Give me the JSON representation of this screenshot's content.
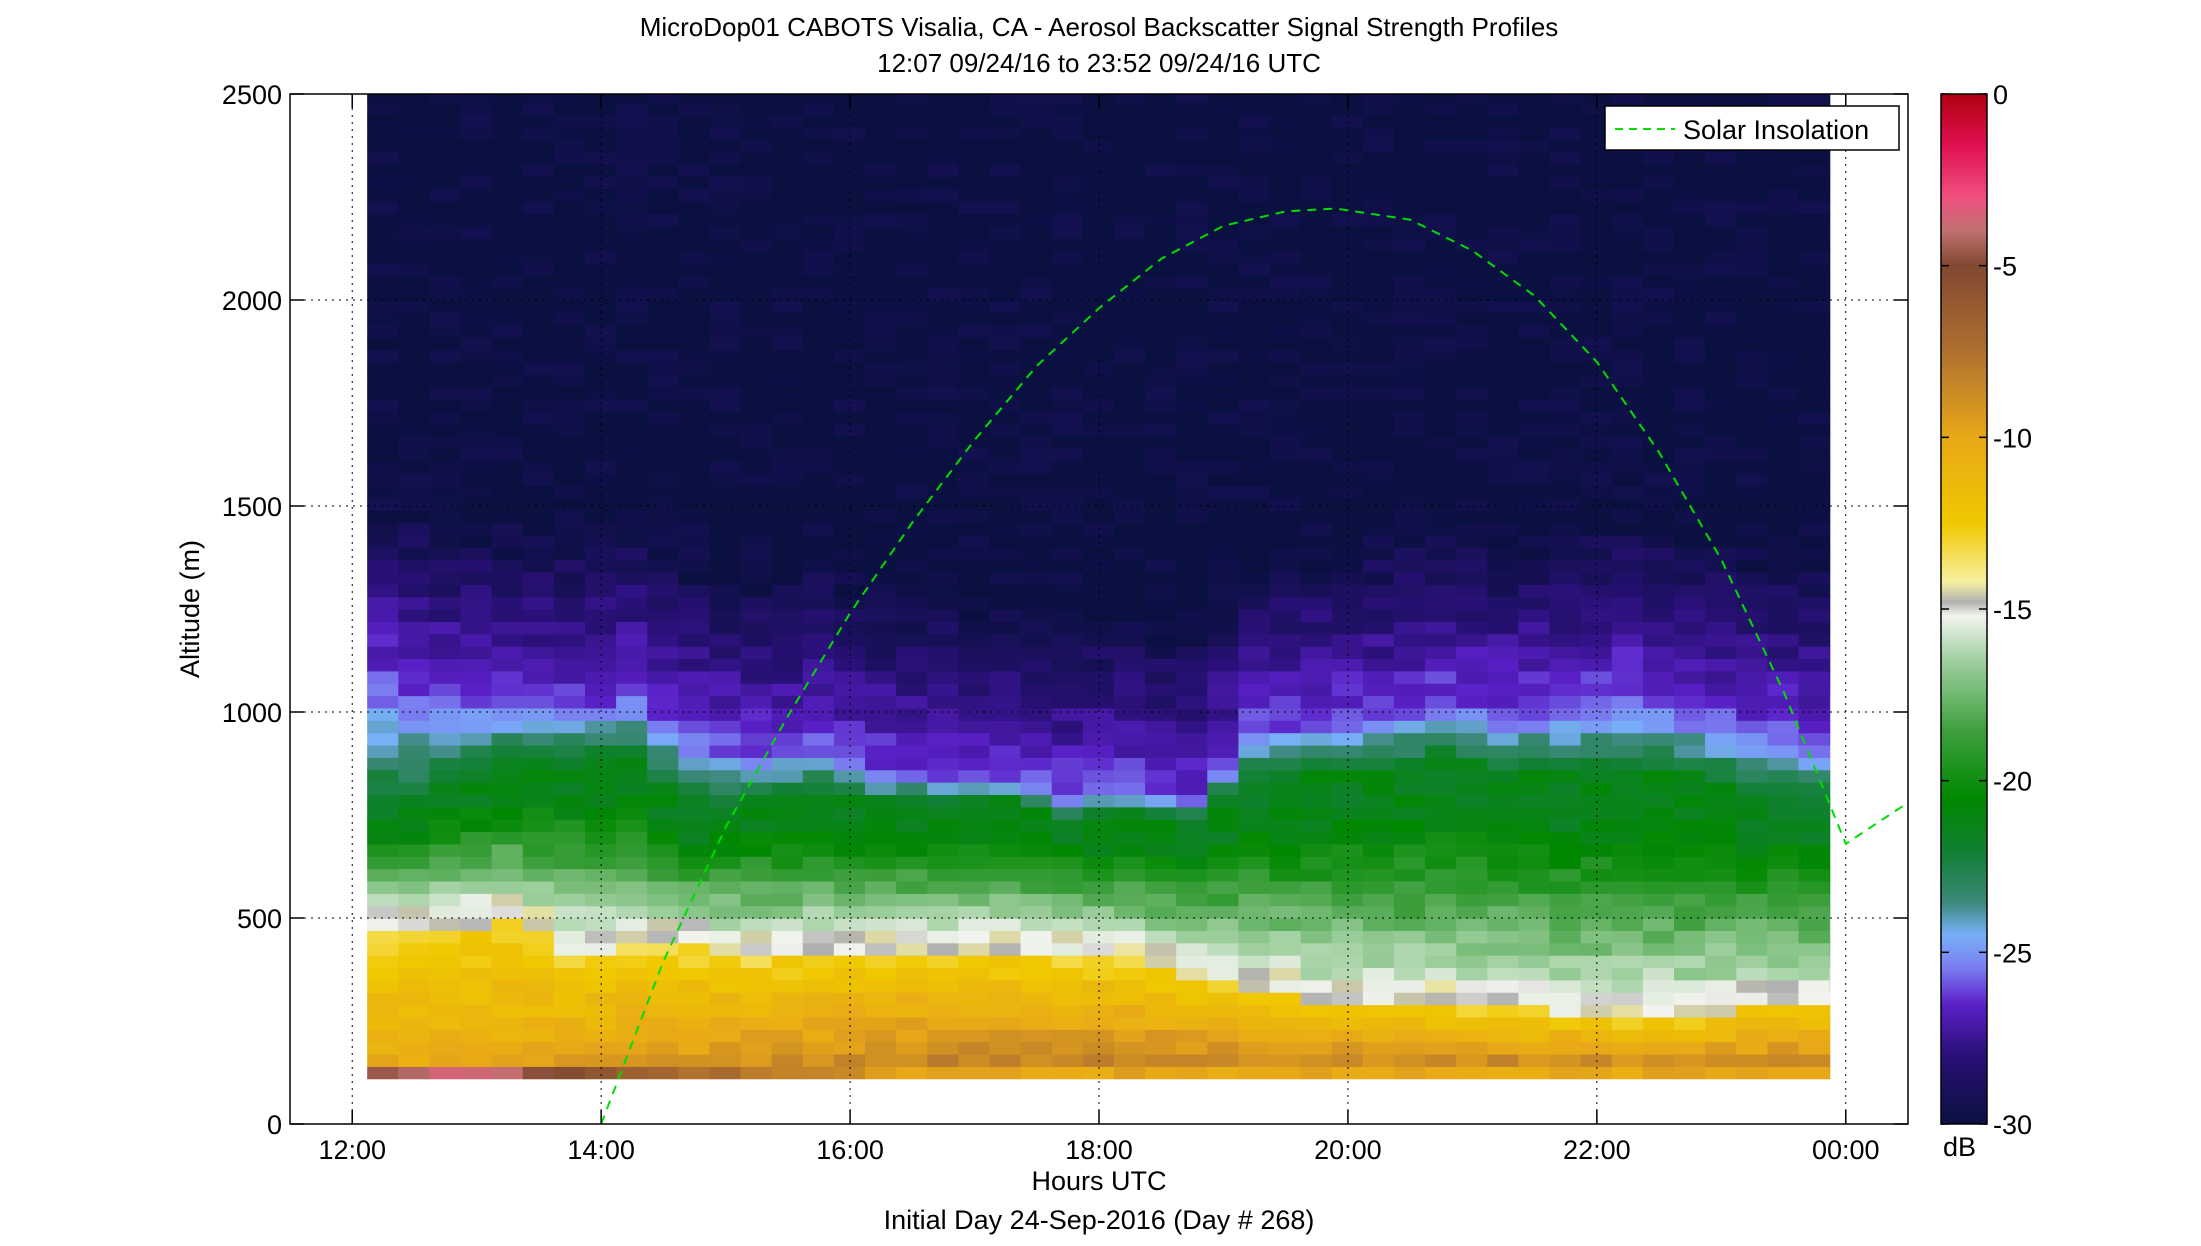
{
  "chart_data": {
    "type": "heatmap",
    "title": "MicroDop01 CABOTS Visalia, CA - Aerosol Backscatter Signal Strength Profiles",
    "subtitle": "12:07 09/24/16 to 23:52 09/24/16  UTC",
    "xlabel": "Hours UTC",
    "ylabel": "Altitude (m)",
    "footer": "Initial Day 24-Sep-2016 (Day # 268)",
    "x_range_hours": [
      11.5,
      24.5
    ],
    "y_range_m": [
      0,
      2500
    ],
    "x_ticks": [
      {
        "value": 12,
        "label": "12:00"
      },
      {
        "value": 14,
        "label": "14:00"
      },
      {
        "value": 16,
        "label": "16:00"
      },
      {
        "value": 18,
        "label": "18:00"
      },
      {
        "value": 20,
        "label": "20:00"
      },
      {
        "value": 22,
        "label": "22:00"
      },
      {
        "value": 24,
        "label": "00:00"
      }
    ],
    "y_ticks": [
      {
        "value": 0,
        "label": "0"
      },
      {
        "value": 500,
        "label": "500"
      },
      {
        "value": 1000,
        "label": "1000"
      },
      {
        "value": 1500,
        "label": "1500"
      },
      {
        "value": 2000,
        "label": "2000"
      },
      {
        "value": 2500,
        "label": "2500"
      }
    ],
    "grid": "dotted, at major ticks",
    "data_start_hour": 12.12,
    "data_end_hour": 23.87,
    "altitude_range_m": [
      110,
      2500
    ],
    "profile_interval_hours": 0.25,
    "range_gate_m": 30,
    "profiles": [
      {
        "time": 12.25,
        "aerosol_top": 1080,
        "green_top": 760,
        "yellow_top": 470
      },
      {
        "time": 12.75,
        "aerosol_top": 1030,
        "green_top": 820,
        "yellow_top": 470
      },
      {
        "time": 13.25,
        "aerosol_top": 1020,
        "green_top": 880,
        "yellow_top": 490
      },
      {
        "time": 13.75,
        "aerosol_top": 1010,
        "green_top": 890,
        "yellow_top": 420
      },
      {
        "time": 14.25,
        "aerosol_top": 1040,
        "green_top": 880,
        "yellow_top": 430
      },
      {
        "time": 14.75,
        "aerosol_top": 940,
        "green_top": 760,
        "yellow_top": 430
      },
      {
        "time": 15.25,
        "aerosol_top": 890,
        "green_top": 800,
        "yellow_top": 400
      },
      {
        "time": 15.75,
        "aerosol_top": 920,
        "green_top": 800,
        "yellow_top": 420
      },
      {
        "time": 16.25,
        "aerosol_top": 860,
        "green_top": 780,
        "yellow_top": 420
      },
      {
        "time": 16.75,
        "aerosol_top": 850,
        "green_top": 780,
        "yellow_top": 420
      },
      {
        "time": 17.25,
        "aerosol_top": 840,
        "green_top": 790,
        "yellow_top": 420
      },
      {
        "time": 17.75,
        "aerosol_top": 800,
        "green_top": 740,
        "yellow_top": 410
      },
      {
        "time": 18.25,
        "aerosol_top": 810,
        "green_top": 760,
        "yellow_top": 400
      },
      {
        "time": 18.75,
        "aerosol_top": 780,
        "green_top": 740,
        "yellow_top": 360
      },
      {
        "time": 19.25,
        "aerosol_top": 950,
        "green_top": 840,
        "yellow_top": 330
      },
      {
        "time": 19.75,
        "aerosol_top": 970,
        "green_top": 860,
        "yellow_top": 300
      },
      {
        "time": 20.25,
        "aerosol_top": 990,
        "green_top": 860,
        "yellow_top": 290
      },
      {
        "time": 20.75,
        "aerosol_top": 1030,
        "green_top": 880,
        "yellow_top": 290
      },
      {
        "time": 21.25,
        "aerosol_top": 990,
        "green_top": 860,
        "yellow_top": 290
      },
      {
        "time": 21.75,
        "aerosol_top": 1010,
        "green_top": 860,
        "yellow_top": 270
      },
      {
        "time": 22.25,
        "aerosol_top": 1040,
        "green_top": 860,
        "yellow_top": 260
      },
      {
        "time": 22.75,
        "aerosol_top": 1000,
        "green_top": 840,
        "yellow_top": 260
      },
      {
        "time": 23.25,
        "aerosol_top": 960,
        "green_top": 810,
        "yellow_top": 290
      },
      {
        "time": 23.75,
        "aerosol_top": 930,
        "green_top": 780,
        "yellow_top": 290
      }
    ],
    "solar_insolation": {
      "name": "Solar Insolation",
      "color": "#00dd00",
      "style": "dashed",
      "x": [
        14.0,
        14.5,
        15.0,
        15.5,
        16.0,
        16.5,
        17.0,
        17.5,
        18.0,
        18.5,
        19.0,
        19.5,
        19.9,
        20.5,
        21.0,
        21.5,
        22.0,
        22.5,
        23.0,
        23.5,
        24.0,
        24.5
      ],
      "y": [
        0,
        395,
        720,
        990,
        1240,
        1460,
        1660,
        1840,
        1980,
        2100,
        2180,
        2215,
        2222,
        2195,
        2120,
        2010,
        1850,
        1630,
        1370,
        1050,
        680,
        780
      ]
    },
    "legend": {
      "entries": [
        "Solar Insolation"
      ],
      "placement": "top-right"
    },
    "colorbar": {
      "label": "dB",
      "range": [
        -30,
        0
      ],
      "ticks": [
        {
          "value": 0,
          "label": "0"
        },
        {
          "value": -5,
          "label": "-5"
        },
        {
          "value": -10,
          "label": "-10"
        },
        {
          "value": -15,
          "label": "-15"
        },
        {
          "value": -20,
          "label": "-20"
        },
        {
          "value": -25,
          "label": "-25"
        },
        {
          "value": -30,
          "label": "-30"
        }
      ],
      "color_stops": [
        {
          "value": -30,
          "color": "#0a1040"
        },
        {
          "value": -28,
          "color": "#2a1078"
        },
        {
          "value": -26.5,
          "color": "#5a20c8"
        },
        {
          "value": -25.5,
          "color": "#7a7af0"
        },
        {
          "value": -24.5,
          "color": "#78b0f8"
        },
        {
          "value": -23.5,
          "color": "#3a8878"
        },
        {
          "value": -22,
          "color": "#108030"
        },
        {
          "value": -20.5,
          "color": "#008800"
        },
        {
          "value": -18.5,
          "color": "#40a040"
        },
        {
          "value": -16.5,
          "color": "#a0d0a0"
        },
        {
          "value": -15.2,
          "color": "#f4f4f0"
        },
        {
          "value": -14.8,
          "color": "#b0b0b0"
        },
        {
          "value": -14.2,
          "color": "#f8f0a0"
        },
        {
          "value": -12.5,
          "color": "#f0c800"
        },
        {
          "value": -10,
          "color": "#e8a818"
        },
        {
          "value": -7.5,
          "color": "#b07030"
        },
        {
          "value": -5,
          "color": "#804830"
        },
        {
          "value": -4,
          "color": "#c07070"
        },
        {
          "value": -3,
          "color": "#f05080"
        },
        {
          "value": -1.5,
          "color": "#e01050"
        },
        {
          "value": 0,
          "color": "#b00010"
        }
      ]
    }
  }
}
